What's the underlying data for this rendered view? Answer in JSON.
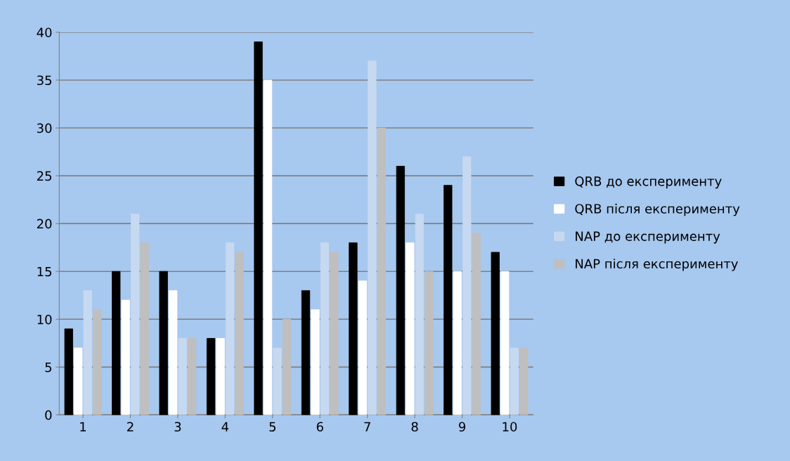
{
  "chart_data": {
    "type": "bar",
    "categories": [
      "1",
      "2",
      "3",
      "4",
      "5",
      "6",
      "7",
      "8",
      "9",
      "10"
    ],
    "series": [
      {
        "name": "QRB до експерименту",
        "color": "#000000",
        "values": [
          9,
          15,
          15,
          8,
          39,
          13,
          18,
          26,
          24,
          17
        ]
      },
      {
        "name": "QRB після експерименту",
        "color": "#ffffff",
        "values": [
          7,
          12,
          13,
          8,
          35,
          11,
          14,
          18,
          15,
          15
        ]
      },
      {
        "name": "NAP до експерименту",
        "color": "#c6d9f1",
        "values": [
          13,
          21,
          8,
          18,
          7,
          18,
          37,
          21,
          27,
          7
        ]
      },
      {
        "name": "NAP після експерименту",
        "color": "#bfbfbf",
        "values": [
          11,
          18,
          8,
          17,
          10,
          17,
          30,
          15,
          19,
          7
        ]
      }
    ],
    "ylim": [
      0,
      40
    ],
    "yticks": [
      0,
      5,
      10,
      15,
      20,
      25,
      30,
      35,
      40
    ],
    "grid": "y",
    "legend": "right"
  }
}
